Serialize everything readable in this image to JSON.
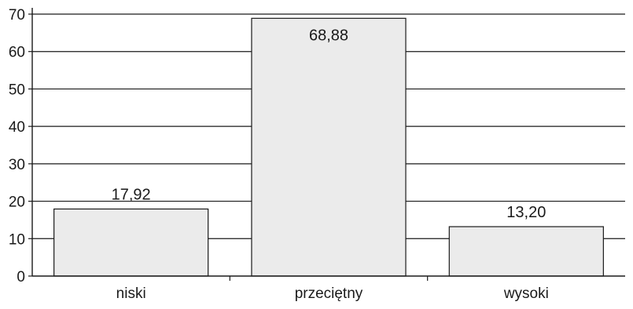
{
  "chart_data": {
    "type": "bar",
    "categories": [
      "niski",
      "przeciętny",
      "wysoki"
    ],
    "values": [
      17.92,
      68.88,
      13.2
    ],
    "value_labels": [
      "17,92",
      "68,88",
      "13,20"
    ],
    "title": "",
    "xlabel": "",
    "ylabel": "",
    "ylim": [
      0,
      70
    ],
    "yticks": [
      0,
      10,
      20,
      30,
      40,
      50,
      60,
      70
    ],
    "grid": true,
    "legend": "none",
    "colors": {
      "bar_fill": "#ebebeb",
      "bar_stroke": "#1a1a1a",
      "grid": "#1a1a1a",
      "axis": "#1a1a1a"
    }
  }
}
